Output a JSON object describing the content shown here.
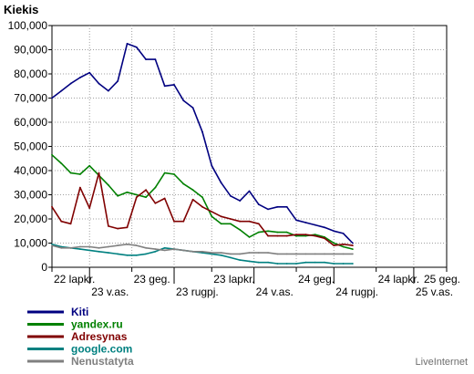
{
  "chart_data": {
    "type": "line",
    "title": "Kiekis",
    "subtitle": "",
    "xlabel": "",
    "ylabel": "",
    "ylim": [
      0,
      100000
    ],
    "y_ticks": [
      0,
      10000,
      20000,
      30000,
      40000,
      50000,
      60000,
      70000,
      80000,
      90000,
      100000
    ],
    "y_tick_labels": [
      "0",
      "10,000",
      "20,000",
      "30,000",
      "40,000",
      "50,000",
      "60,000",
      "70,000",
      "80,000",
      "90,000",
      "100,000"
    ],
    "x_range": [
      0,
      42
    ],
    "grid": true,
    "legend_position": "bottom-left",
    "x_tick_labels": [
      {
        "x": 0,
        "label": "22 lapkr.",
        "row": 1
      },
      {
        "x": 4,
        "label": "23 v.as.",
        "row": 2
      },
      {
        "x": 8.5,
        "label": "23 geg.",
        "row": 1
      },
      {
        "x": 13,
        "label": "23 rugpj.",
        "row": 2
      },
      {
        "x": 17,
        "label": "23 lapkr.",
        "row": 1
      },
      {
        "x": 21.5,
        "label": "24 v.as.",
        "row": 2
      },
      {
        "x": 26,
        "label": "24 geg.",
        "row": 1
      },
      {
        "x": 30,
        "label": "24 rugpj.",
        "row": 2
      },
      {
        "x": 34.5,
        "label": "24 lapkr.",
        "row": 1
      },
      {
        "x": 38.5,
        "label": "25 v.as.",
        "row": 2
      },
      {
        "x": 43,
        "label": "25 geg.",
        "row": 1
      }
    ],
    "series": [
      {
        "name": "Kiti",
        "color": "#000080",
        "x": [
          0,
          1,
          2,
          3,
          4,
          5,
          6,
          7,
          8,
          9,
          10,
          11,
          12,
          13,
          14,
          15,
          16,
          17,
          18,
          19,
          20,
          21,
          22,
          23,
          24,
          25,
          26,
          27,
          28,
          29,
          30,
          31,
          32,
          33,
          34,
          35,
          36,
          37,
          38,
          39,
          40,
          41,
          42
        ],
        "values": [
          70000,
          73000,
          76000,
          78500,
          80500,
          76000,
          73000,
          77000,
          92500,
          91000,
          86000,
          86000,
          75000,
          75500,
          69000,
          66000,
          56000,
          42000,
          35000,
          29500,
          27500,
          31500,
          26000,
          24000,
          25000,
          25000,
          19500,
          18500,
          17500,
          16500,
          15000,
          14000,
          10000,
          null,
          null,
          null,
          null,
          null,
          null,
          null,
          null,
          null,
          null
        ]
      },
      {
        "name": "yandex.ru",
        "color": "#008000",
        "x": [
          0,
          1,
          2,
          3,
          4,
          5,
          6,
          7,
          8,
          9,
          10,
          11,
          12,
          13,
          14,
          15,
          16,
          17,
          18,
          19,
          20,
          21,
          22,
          23,
          24,
          25,
          26,
          27,
          28,
          29,
          30,
          31,
          32
        ],
        "values": [
          46500,
          43000,
          39000,
          38500,
          42000,
          38000,
          34000,
          29500,
          31000,
          30000,
          29000,
          33000,
          39000,
          38500,
          34500,
          32000,
          29000,
          21000,
          18000,
          18000,
          15500,
          12500,
          14500,
          15000,
          14500,
          14500,
          13000,
          13000,
          13500,
          12500,
          10000,
          8500,
          7500
        ]
      },
      {
        "name": "Adresynas",
        "color": "#800000",
        "x": [
          0,
          1,
          2,
          3,
          4,
          5,
          6,
          7,
          8,
          9,
          10,
          11,
          12,
          13,
          14,
          15,
          16,
          17,
          18,
          19,
          20,
          21,
          22,
          23,
          24,
          25,
          26,
          27,
          28,
          29,
          30,
          31,
          32
        ],
        "values": [
          25000,
          19000,
          18000,
          33000,
          24500,
          39000,
          17000,
          16000,
          16500,
          29000,
          32000,
          26500,
          28500,
          19000,
          19000,
          28000,
          25000,
          23000,
          21000,
          20000,
          19000,
          19000,
          18000,
          13000,
          13000,
          13000,
          13500,
          13500,
          13000,
          12000,
          9000,
          9500,
          9000
        ]
      },
      {
        "name": "google.com",
        "color": "#008080",
        "x": [
          0,
          1,
          2,
          3,
          4,
          5,
          6,
          7,
          8,
          9,
          10,
          11,
          12,
          13,
          14,
          15,
          16,
          17,
          18,
          19,
          20,
          21,
          22,
          23,
          24,
          25,
          26,
          27,
          28,
          29,
          30,
          31,
          32
        ],
        "values": [
          9500,
          8500,
          8000,
          7500,
          7000,
          6500,
          6000,
          5500,
          5000,
          5000,
          5500,
          6500,
          8000,
          7500,
          7000,
          6500,
          6000,
          5500,
          5000,
          4000,
          3000,
          2500,
          2000,
          2000,
          1500,
          1500,
          1500,
          2000,
          2000,
          2000,
          1500,
          1500,
          1500
        ]
      },
      {
        "name": "Nenustatyta",
        "color": "#808080",
        "x": [
          0,
          1,
          2,
          3,
          4,
          5,
          6,
          7,
          8,
          9,
          10,
          11,
          12,
          13,
          14,
          15,
          16,
          17,
          18,
          19,
          20,
          21,
          22,
          23,
          24,
          25,
          26,
          27,
          28,
          29,
          30,
          31,
          32
        ],
        "values": [
          9000,
          8000,
          8000,
          8500,
          8500,
          8000,
          8500,
          9000,
          9500,
          9000,
          8000,
          7500,
          7000,
          7500,
          7000,
          6500,
          6500,
          6000,
          6000,
          5500,
          5500,
          6000,
          6000,
          6000,
          5500,
          5500,
          5500,
          5500,
          5500,
          5500,
          5500,
          5500,
          5500
        ]
      }
    ],
    "watermark": "LiveInternet"
  }
}
